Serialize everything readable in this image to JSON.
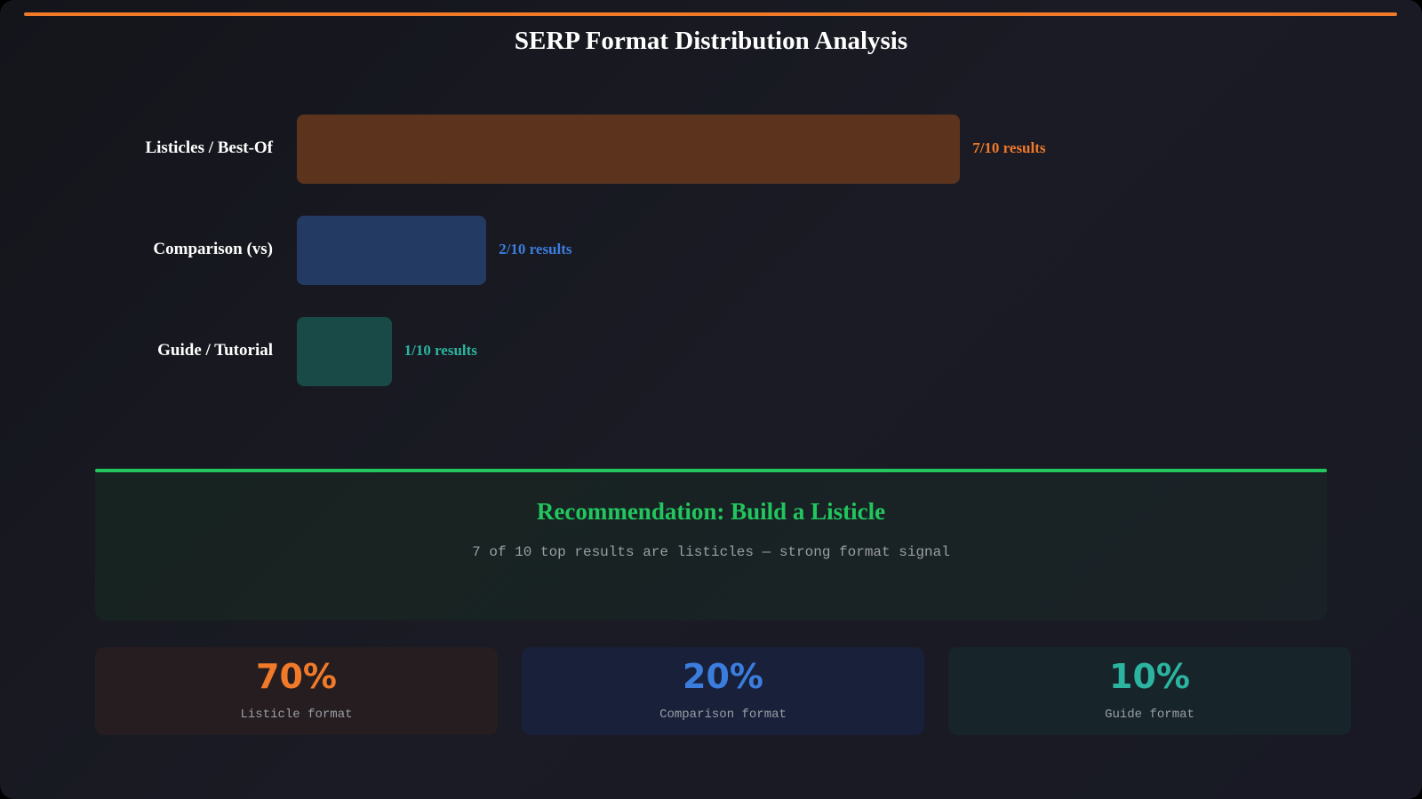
{
  "chart_data": {
    "type": "bar",
    "orientation": "horizontal",
    "title": "SERP Format Distribution Analysis",
    "categories": [
      "Listicles / Best-Of",
      "Comparison (vs)",
      "Guide / Tutorial"
    ],
    "values": [
      7,
      2,
      1
    ],
    "max": 10,
    "value_labels": [
      "7/10 results",
      "2/10 results",
      "1/10 results"
    ],
    "colors": {
      "bar": [
        "#5c341e",
        "#233a63",
        "#1a4a48"
      ],
      "text": [
        "#f07a2a",
        "#3b7ddd",
        "#2bb5a0"
      ]
    }
  },
  "recommendation": {
    "title": "Recommendation: Build a Listicle",
    "subtitle": "7 of 10 top results are listicles — strong format signal",
    "accent": "#22c55e"
  },
  "stats": [
    {
      "value": "70%",
      "label": "Listicle format",
      "color": "#f07a2a",
      "bg": "#261d20"
    },
    {
      "value": "20%",
      "label": "Comparison format",
      "color": "#3b7ddd",
      "bg": "#19203a"
    },
    {
      "value": "10%",
      "label": "Guide format",
      "color": "#2bb5a0",
      "bg": "#17242a"
    }
  ]
}
